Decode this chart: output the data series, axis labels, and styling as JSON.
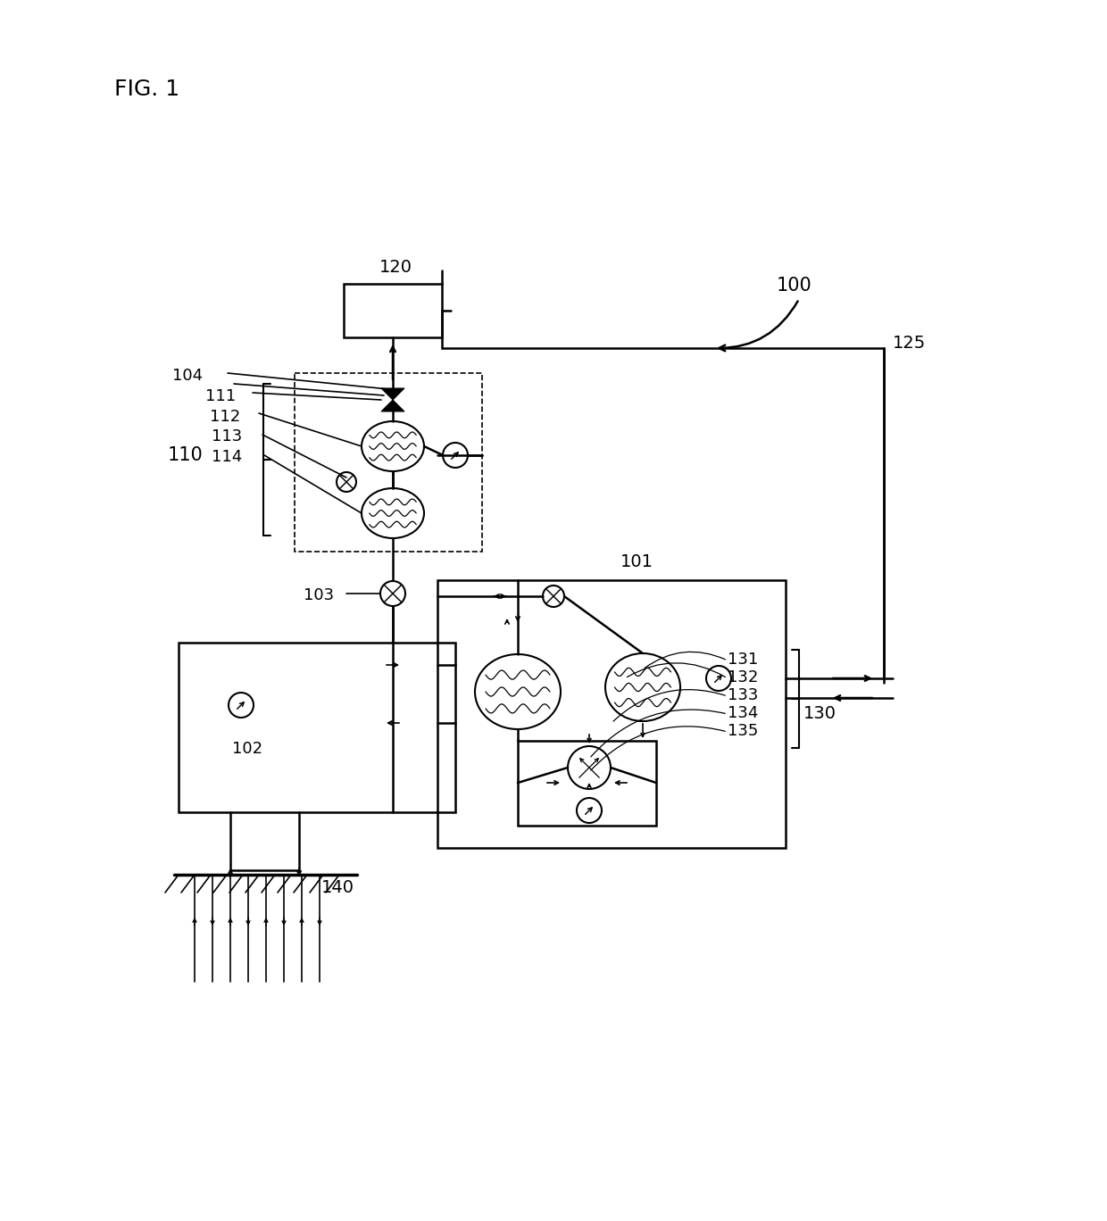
{
  "bg_color": "#ffffff",
  "line_color": "#000000",
  "figsize": [
    12.4,
    13.68
  ],
  "dpi": 100
}
